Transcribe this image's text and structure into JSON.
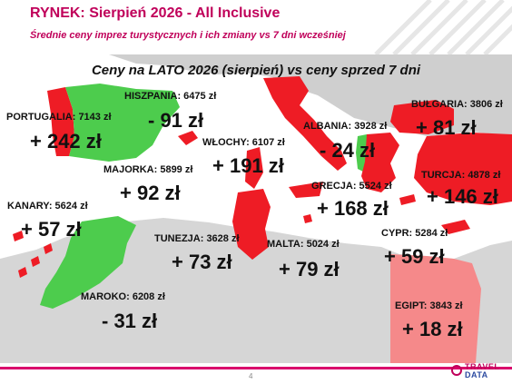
{
  "header": {
    "title": "RYNEK: Sierpień 2026 - All Inclusive",
    "subtitle": "Średnie ceny imprez turystycznych i ich zmiany vs 7 dni wcześniej"
  },
  "map": {
    "title": "Ceny na LATO 2026 (sierpień) vs ceny sprzed 7 dni",
    "colors": {
      "increase": "#ee1c25",
      "decrease": "#4dcc4d",
      "unchanged": "#cfcfcf",
      "egypt": "#f5898a",
      "sea": "#ffffff"
    }
  },
  "destinations": [
    {
      "label": "PORTUGALIA: 7143 zł",
      "change": "+ 242 zł",
      "trend": "increase"
    },
    {
      "label": "HISZPANIA: 6475 zł",
      "change": "- 91 zł",
      "trend": "decrease"
    },
    {
      "label": "WŁOCHY: 6107 zł",
      "change": "+ 191 zł",
      "trend": "increase"
    },
    {
      "label": "ALBANIA: 3928 zł",
      "change": "- 24 zł",
      "trend": "decrease"
    },
    {
      "label": "BUŁGARIA: 3806 zł",
      "change": "+ 81 zł",
      "trend": "increase"
    },
    {
      "label": "MAJORKA: 5899 zł",
      "change": "+ 92 zł",
      "trend": "increase"
    },
    {
      "label": "TURCJA: 4878 zł",
      "change": "+ 146 zł",
      "trend": "increase"
    },
    {
      "label": "GRECJA: 5524 zł",
      "change": "+ 168 zł",
      "trend": "increase"
    },
    {
      "label": "KANARY: 5624 zł",
      "change": "+ 57 zł",
      "trend": "increase"
    },
    {
      "label": "TUNEZJA: 3628 zł",
      "change": "+ 73 zł",
      "trend": "increase"
    },
    {
      "label": "MALTA: 5024 zł",
      "change": "+ 79 zł",
      "trend": "increase"
    },
    {
      "label": "CYPR: 5284 zł",
      "change": "+ 59 zł",
      "trend": "increase"
    },
    {
      "label": "MAROKO: 6208 zł",
      "change": "- 31 zł",
      "trend": "decrease"
    },
    {
      "label": "EGIPT: 3843 zł",
      "change": "+ 18 zł",
      "trend": "increase"
    }
  ],
  "footer": {
    "page_number": "4",
    "logo_top": "TRAVEL",
    "logo_bottom": "DATA"
  }
}
